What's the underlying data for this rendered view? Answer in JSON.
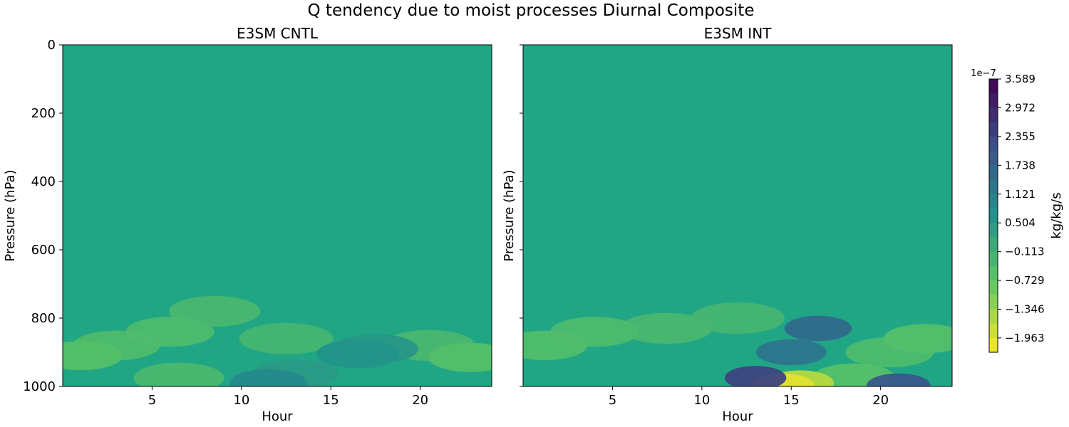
{
  "figure_title": "Q tendency due to moist processes Diurnal Composite",
  "chart_data": {
    "type": "heatmap",
    "title": "Q tendency due to moist processes Diurnal Composite",
    "panels": [
      {
        "title": "E3SM CNTL",
        "xlabel": "Hour",
        "ylabel": "Pressure (hPa)",
        "xticks": [
          "5",
          "10",
          "15",
          "20"
        ],
        "yticks": [
          "0",
          "200",
          "400",
          "600",
          "800",
          "1000"
        ],
        "features": [
          {
            "hour": 1,
            "pressure": 910,
            "value": -0.55
          },
          {
            "hour": 3,
            "pressure": 880,
            "value": -0.45
          },
          {
            "hour": 6,
            "pressure": 840,
            "value": -0.4
          },
          {
            "hour": 8.5,
            "pressure": 780,
            "value": -0.32
          },
          {
            "hour": 12.5,
            "pressure": 860,
            "value": -0.25
          },
          {
            "hour": 16.5,
            "pressure": 905,
            "value": 0.6
          },
          {
            "hour": 17.5,
            "pressure": 890,
            "value": 0.5
          },
          {
            "hour": 13,
            "pressure": 965,
            "value": 0.45
          },
          {
            "hour": 11.5,
            "pressure": 990,
            "value": 0.85
          },
          {
            "hour": 20.5,
            "pressure": 880,
            "value": -0.3
          },
          {
            "hour": 22.8,
            "pressure": 915,
            "value": -0.55
          },
          {
            "hour": 6.5,
            "pressure": 975,
            "value": -0.35
          }
        ]
      },
      {
        "title": "E3SM INT",
        "xlabel": "Hour",
        "ylabel": "Pressure (hPa)",
        "xticks": [
          "5",
          "10",
          "15",
          "20"
        ],
        "yticks": [
          "0",
          "200",
          "400",
          "600",
          "800",
          "1000"
        ],
        "features": [
          {
            "hour": 1.2,
            "pressure": 880,
            "value": -0.5
          },
          {
            "hour": 4,
            "pressure": 840,
            "value": -0.4
          },
          {
            "hour": 8,
            "pressure": 830,
            "value": -0.3
          },
          {
            "hour": 12,
            "pressure": 800,
            "value": -0.25
          },
          {
            "hour": 16.5,
            "pressure": 830,
            "value": 1.6
          },
          {
            "hour": 15,
            "pressure": 900,
            "value": 1.3
          },
          {
            "hour": 13,
            "pressure": 975,
            "value": 2.4
          },
          {
            "hour": 15.5,
            "pressure": 990,
            "value": -1.6
          },
          {
            "hour": 14.5,
            "pressure": 998,
            "value": -2.0
          },
          {
            "hour": 18.5,
            "pressure": 975,
            "value": -0.6
          },
          {
            "hour": 21,
            "pressure": 998,
            "value": 2.0
          },
          {
            "hour": 22.5,
            "pressure": 860,
            "value": -0.55
          },
          {
            "hour": 20.5,
            "pressure": 900,
            "value": -0.4
          }
        ]
      }
    ],
    "colorbar": {
      "label": "kg/kg/s",
      "exponent": "1e−7",
      "ticks": [
        "3.589",
        "2.972",
        "2.355",
        "1.738",
        "1.121",
        "0.504",
        "−0.113",
        "−0.729",
        "−1.346",
        "−1.963"
      ],
      "tick_values": [
        3.589,
        2.972,
        2.355,
        1.738,
        1.121,
        0.504,
        -0.113,
        -0.729,
        -1.346,
        -1.963
      ],
      "range": [
        -2.27,
        3.589
      ],
      "colormap": "viridis_r"
    }
  }
}
